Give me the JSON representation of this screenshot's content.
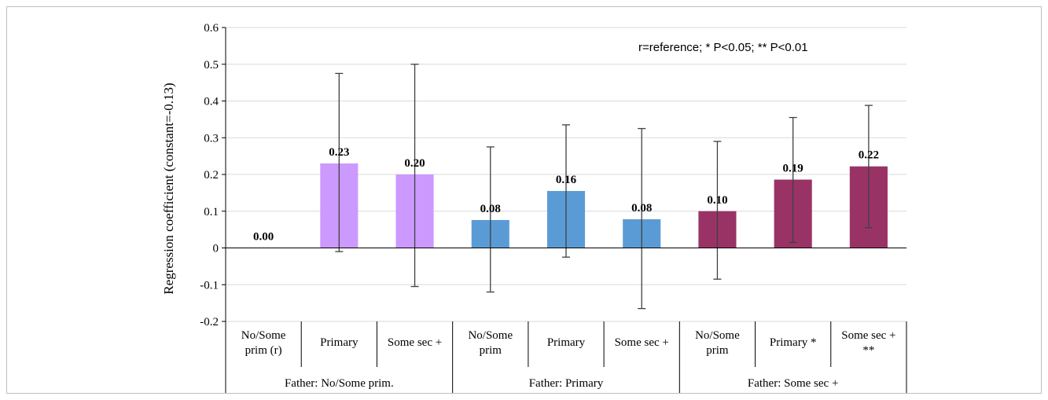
{
  "chart_data": {
    "type": "bar",
    "title": "",
    "xlabel": "",
    "ylabel": "Regression coefficient (constant=-0.13)",
    "ylim": [
      -0.2,
      0.6
    ],
    "yticks": [
      "-0.2",
      "-0.1",
      "0",
      "0.1",
      "0.2",
      "0.3",
      "0.4",
      "0.5",
      "0.6"
    ],
    "grid": true,
    "annotation": "r=reference;  * P<0.05; ** P<0.01",
    "groups": [
      {
        "label": "Father: No/Some prim.",
        "color": "#cc99ff",
        "categories": [
          {
            "label": [
              "No/Some",
              "prim (r)"
            ],
            "value": 0.0,
            "value_label": "0.00",
            "err_low": null,
            "err_high": null
          },
          {
            "label": [
              "Primary"
            ],
            "value": 0.23,
            "value_label": "0.23",
            "err_low": -0.01,
            "err_high": 0.475
          },
          {
            "label": [
              "Some sec +"
            ],
            "value": 0.2,
            "value_label": "0.20",
            "err_low": -0.105,
            "err_high": 0.5
          }
        ]
      },
      {
        "label": "Father: Primary",
        "color": "#5b9bd5",
        "categories": [
          {
            "label": [
              "No/Some",
              "prim"
            ],
            "value": 0.076,
            "value_label": "0.08",
            "err_low": -0.12,
            "err_high": 0.275
          },
          {
            "label": [
              "Primary"
            ],
            "value": 0.155,
            "value_label": "0.16",
            "err_low": -0.025,
            "err_high": 0.335
          },
          {
            "label": [
              "Some sec +"
            ],
            "value": 0.078,
            "value_label": "0.08",
            "err_low": -0.165,
            "err_high": 0.325
          }
        ]
      },
      {
        "label": "Father: Some sec +",
        "color": "#993366",
        "categories": [
          {
            "label": [
              "No/Some",
              "prim"
            ],
            "value": 0.1,
            "value_label": "0.10",
            "err_low": -0.085,
            "err_high": 0.29
          },
          {
            "label": [
              "Primary *"
            ],
            "value": 0.186,
            "value_label": "0.19",
            "err_low": 0.015,
            "err_high": 0.355
          },
          {
            "label": [
              "Some sec +",
              "**"
            ],
            "value": 0.222,
            "value_label": "0.22",
            "err_low": 0.055,
            "err_high": 0.388
          }
        ]
      }
    ]
  }
}
